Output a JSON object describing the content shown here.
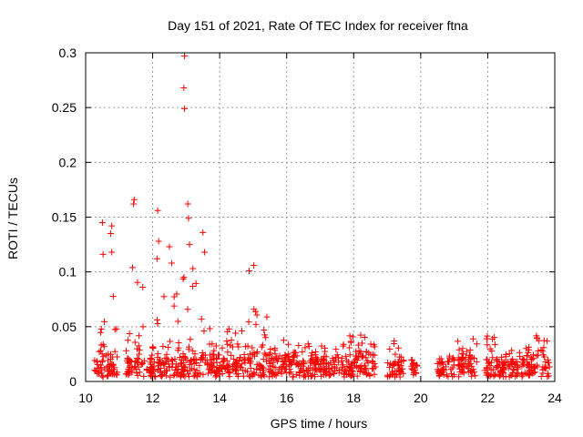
{
  "chart_data": {
    "type": "scatter",
    "title": "Day 151 of 2021, Rate Of TEC Index for receiver ftna",
    "xlabel": "GPS time / hours",
    "ylabel": "ROTI / TECUs",
    "xlim": [
      10,
      24
    ],
    "ylim": [
      0,
      0.3
    ],
    "xticks": [
      10,
      12,
      14,
      16,
      18,
      20,
      22,
      24
    ],
    "xtick_labels": [
      "10",
      "12",
      "14",
      "16",
      "18",
      "20",
      "22",
      "24"
    ],
    "yticks": [
      0,
      0.05,
      0.1,
      0.15,
      0.2,
      0.25,
      0.3
    ],
    "ytick_labels": [
      "0",
      "0.05",
      "0.1",
      "0.15",
      "0.2",
      "0.25",
      "0.3"
    ],
    "grid": true,
    "marker": "plus",
    "series_color": "#ff0000",
    "outliers": [
      {
        "x": 12.95,
        "y": 0.297
      },
      {
        "x": 12.93,
        "y": 0.268
      },
      {
        "x": 12.95,
        "y": 0.249
      },
      {
        "x": 11.45,
        "y": 0.166
      },
      {
        "x": 11.43,
        "y": 0.162
      },
      {
        "x": 13.05,
        "y": 0.162
      },
      {
        "x": 12.15,
        "y": 0.156
      },
      {
        "x": 13.07,
        "y": 0.149
      },
      {
        "x": 10.5,
        "y": 0.145
      },
      {
        "x": 10.78,
        "y": 0.142
      },
      {
        "x": 10.75,
        "y": 0.135
      },
      {
        "x": 13.5,
        "y": 0.136
      },
      {
        "x": 12.5,
        "y": 0.123
      },
      {
        "x": 12.18,
        "y": 0.128
      },
      {
        "x": 10.78,
        "y": 0.118
      },
      {
        "x": 10.52,
        "y": 0.116
      },
      {
        "x": 12.13,
        "y": 0.112
      },
      {
        "x": 12.57,
        "y": 0.108
      },
      {
        "x": 15.02,
        "y": 0.106
      },
      {
        "x": 14.88,
        "y": 0.101
      },
      {
        "x": 11.4,
        "y": 0.104
      },
      {
        "x": 13.2,
        "y": 0.103
      },
      {
        "x": 13.1,
        "y": 0.125
      },
      {
        "x": 13.55,
        "y": 0.118
      }
    ],
    "clusters": [
      {
        "x_start": 10.25,
        "x_end": 10.95,
        "base_max": 0.024,
        "spike_max": 0.085
      },
      {
        "x_start": 11.2,
        "x_end": 11.75,
        "base_max": 0.022,
        "spike_max": 0.1
      },
      {
        "x_start": 11.75,
        "x_end": 12.1,
        "base_max": 0.018,
        "spike_max": 0.035
      },
      {
        "x_start": 12.1,
        "x_end": 12.8,
        "base_max": 0.022,
        "spike_max": 0.08
      },
      {
        "x_start": 12.8,
        "x_end": 13.5,
        "base_max": 0.022,
        "spike_max": 0.12
      },
      {
        "x_start": 13.5,
        "x_end": 14.1,
        "base_max": 0.024,
        "spike_max": 0.085
      },
      {
        "x_start": 14.1,
        "x_end": 14.8,
        "base_max": 0.022,
        "spike_max": 0.05
      },
      {
        "x_start": 14.8,
        "x_end": 15.5,
        "base_max": 0.026,
        "spike_max": 0.075
      },
      {
        "x_start": 15.5,
        "x_end": 16.5,
        "base_max": 0.022,
        "spike_max": 0.038
      },
      {
        "x_start": 16.5,
        "x_end": 17.5,
        "base_max": 0.02,
        "spike_max": 0.035
      },
      {
        "x_start": 17.5,
        "x_end": 18.65,
        "base_max": 0.024,
        "spike_max": 0.043
      },
      {
        "x_start": 19.0,
        "x_end": 19.5,
        "base_max": 0.018,
        "spike_max": 0.038
      },
      {
        "x_start": 19.7,
        "x_end": 19.9,
        "base_max": 0.016,
        "spike_max": 0.02
      },
      {
        "x_start": 20.5,
        "x_end": 21.0,
        "base_max": 0.018,
        "spike_max": 0.026
      },
      {
        "x_start": 21.1,
        "x_end": 21.7,
        "base_max": 0.022,
        "spike_max": 0.04
      },
      {
        "x_start": 21.9,
        "x_end": 22.4,
        "base_max": 0.02,
        "spike_max": 0.043
      },
      {
        "x_start": 22.4,
        "x_end": 23.1,
        "base_max": 0.018,
        "spike_max": 0.03
      },
      {
        "x_start": 23.1,
        "x_end": 23.85,
        "base_max": 0.024,
        "spike_max": 0.045
      }
    ]
  }
}
